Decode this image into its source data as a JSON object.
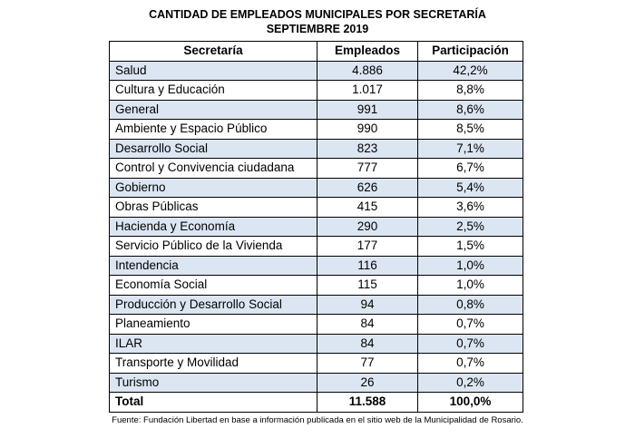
{
  "title_line1": "CANTIDAD DE EMPLEADOS MUNICIPALES POR SECRETARÍA",
  "title_line2": "SEPTIEMBRE 2019",
  "table": {
    "headers": [
      "Secretaría",
      "Empleados",
      "Participación"
    ],
    "rows": [
      [
        "Salud",
        "4.886",
        "42,2%"
      ],
      [
        "Cultura y Educación",
        "1.017",
        "8,8%"
      ],
      [
        "General",
        "991",
        "8,6%"
      ],
      [
        "Ambiente y Espacio Público",
        "990",
        "8,5%"
      ],
      [
        "Desarrollo Social",
        "823",
        "7,1%"
      ],
      [
        "Control y Convivencia ciudadana",
        "777",
        "6,7%"
      ],
      [
        "Gobierno",
        "626",
        "5,4%"
      ],
      [
        "Obras Públicas",
        "415",
        "3,6%"
      ],
      [
        "Hacienda y Economía",
        "290",
        "2,5%"
      ],
      [
        "Servicio Público de la Vivienda",
        "177",
        "1,5%"
      ],
      [
        "Intendencia",
        "116",
        "1,0%"
      ],
      [
        "Economía Social",
        "115",
        "1,0%"
      ],
      [
        "Producción y Desarrollo Social",
        "94",
        "0,8%"
      ],
      [
        "Planeamiento",
        "84",
        "0,7%"
      ],
      [
        "ILAR",
        "84",
        "0,7%"
      ],
      [
        "Transporte y Movilidad",
        "77",
        "0,7%"
      ],
      [
        "Turismo",
        "26",
        "0,2%"
      ]
    ],
    "total": [
      "Total",
      "11.588",
      "100,0%"
    ]
  },
  "source": "Fuente: Fundación Libertad en base a información publicada en el sitio web de la Municipalidad de Rosario.",
  "colors": {
    "row_shade": "#dce6f2",
    "border": "#000000"
  }
}
